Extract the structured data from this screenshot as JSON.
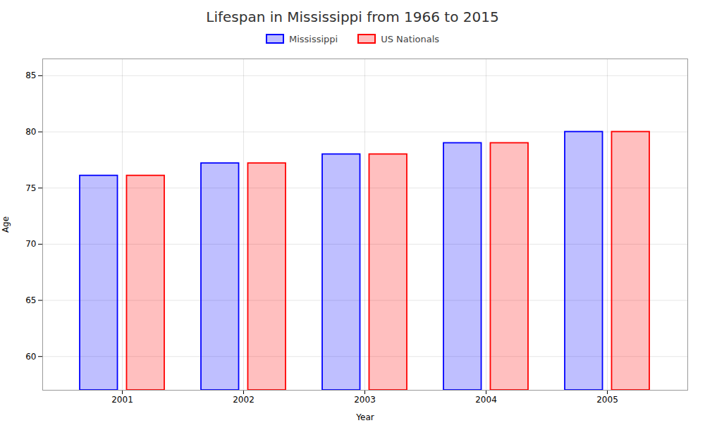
{
  "chart_data": {
    "type": "bar",
    "title": "Lifespan in Mississippi from 1966 to 2015",
    "xlabel": "Year",
    "ylabel": "Age",
    "categories": [
      "2001",
      "2002",
      "2003",
      "2004",
      "2005"
    ],
    "series": [
      {
        "name": "Mississippi",
        "color": "#0000FF",
        "values": [
          76.1,
          77.2,
          78.0,
          79.0,
          80.0
        ]
      },
      {
        "name": "US Nationals",
        "color": "#FF0000",
        "values": [
          76.1,
          77.2,
          78.0,
          79.0,
          80.0
        ]
      }
    ],
    "ylim": [
      57,
      86.5
    ],
    "yticks": [
      60,
      65,
      70,
      75,
      80,
      85
    ],
    "grid": true,
    "legend": "top"
  }
}
